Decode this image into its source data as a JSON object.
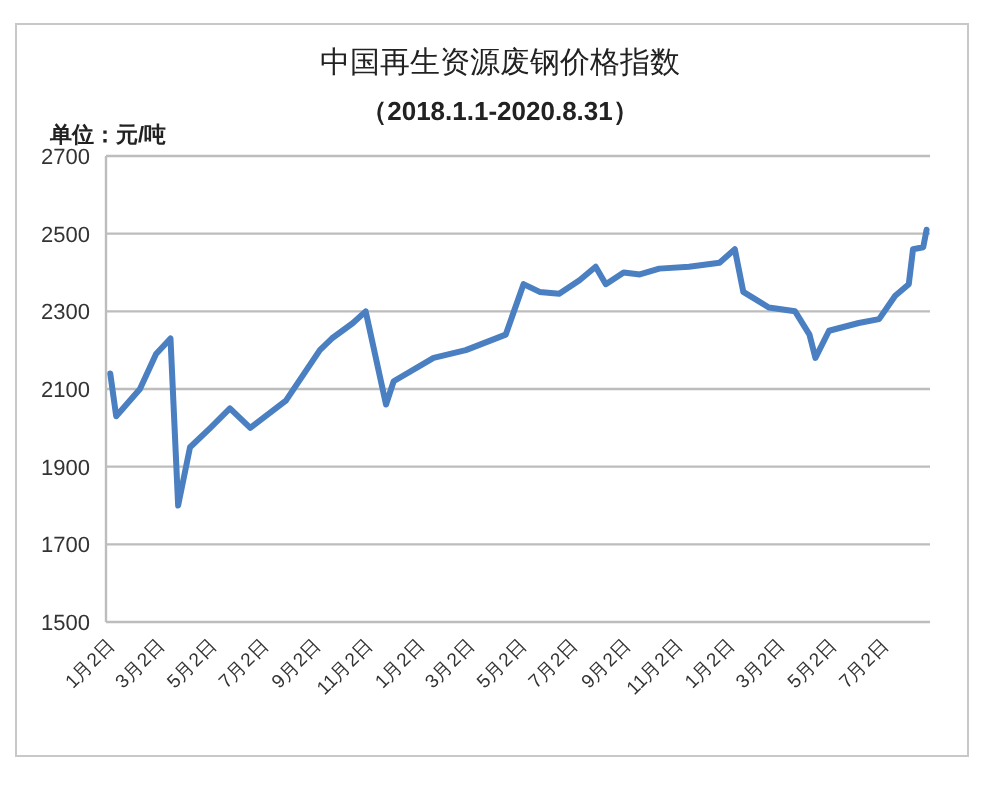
{
  "chart_data": {
    "type": "line",
    "title": "中国再生资源废钢价格指数",
    "subtitle": "（2018.1.1-2020.8.31）",
    "ylabel": "单位：元/吨",
    "x": [
      "2018-01-02",
      "2018-01-09",
      "2018-02-06",
      "2018-02-25",
      "2018-03-14",
      "2018-03-23",
      "2018-04-06",
      "2018-04-30",
      "2018-05-23",
      "2018-06-16",
      "2018-07-28",
      "2018-09-06",
      "2018-09-20",
      "2018-10-15",
      "2018-10-30",
      "2018-11-23",
      "2018-12-02",
      "2019-01-18",
      "2019-02-25",
      "2019-04-13",
      "2019-05-04",
      "2019-05-23",
      "2019-06-15",
      "2019-07-09",
      "2019-07-28",
      "2019-08-09",
      "2019-08-30",
      "2019-09-18",
      "2019-10-11",
      "2019-11-15",
      "2019-12-21",
      "2020-01-08",
      "2020-01-18",
      "2020-02-17",
      "2020-03-19",
      "2020-04-05",
      "2020-04-12",
      "2020-04-28",
      "2020-06-02",
      "2020-06-26",
      "2020-07-15",
      "2020-07-31",
      "2020-08-05",
      "2020-08-17",
      "2020-08-21"
    ],
    "series": [
      {
        "color": "#4a7fc1",
        "values": [
          2140,
          2030,
          2100,
          2190,
          2230,
          1800,
          1950,
          2000,
          2050,
          2000,
          2070,
          2200,
          2230,
          2270,
          2300,
          2060,
          2120,
          2180,
          2200,
          2240,
          2370,
          2350,
          2345,
          2380,
          2415,
          2370,
          2400,
          2395,
          2410,
          2415,
          2425,
          2460,
          2350,
          2310,
          2300,
          2240,
          2180,
          2250,
          2270,
          2280,
          2340,
          2370,
          2460,
          2465,
          2510
        ]
      }
    ],
    "xlim": [
      "2017-12-28",
      "2020-08-25"
    ],
    "xticks": [
      {
        "value": "2018-01-02",
        "label": "1月2日"
      },
      {
        "value": "2018-03-02",
        "label": "3月2日"
      },
      {
        "value": "2018-05-02",
        "label": "5月2日"
      },
      {
        "value": "2018-07-02",
        "label": "7月2日"
      },
      {
        "value": "2018-09-02",
        "label": "9月2日"
      },
      {
        "value": "2018-11-02",
        "label": "11月2日"
      },
      {
        "value": "2019-01-02",
        "label": "1月2日"
      },
      {
        "value": "2019-03-02",
        "label": "3月2日"
      },
      {
        "value": "2019-05-02",
        "label": "5月2日"
      },
      {
        "value": "2019-07-02",
        "label": "7月2日"
      },
      {
        "value": "2019-09-02",
        "label": "9月2日"
      },
      {
        "value": "2019-11-02",
        "label": "11月2日"
      },
      {
        "value": "2020-01-02",
        "label": "1月2日"
      },
      {
        "value": "2020-03-02",
        "label": "3月2日"
      },
      {
        "value": "2020-05-02",
        "label": "5月2日"
      },
      {
        "value": "2020-07-02",
        "label": "7月2日"
      }
    ],
    "ylim": [
      1500,
      2700
    ],
    "yticks": [
      1500,
      1700,
      1900,
      2100,
      2300,
      2500,
      2700
    ],
    "grid": "y",
    "marker": "none",
    "line_style": "solid"
  }
}
